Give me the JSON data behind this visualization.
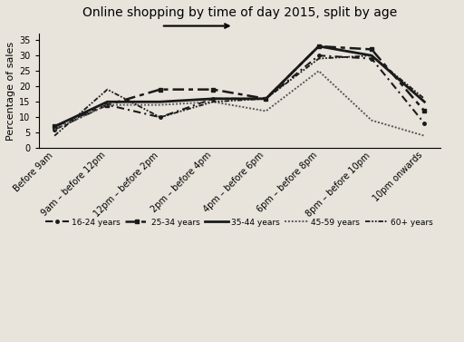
{
  "title": "Online shopping by time of day 2015, split by age",
  "title_underline_word": "time of day",
  "ylabel": "Percentage of sales",
  "ylim": [
    0,
    37
  ],
  "yticks": [
    0,
    5,
    10,
    15,
    20,
    25,
    30,
    35
  ],
  "x_labels": [
    "Before 9am",
    "9am – before 12pm",
    "12pm – before 2pm",
    "2pm – before 4pm",
    "4pm – before 6pm",
    "6pm – before 8pm",
    "8pm – before 10pm",
    "10pm onwards"
  ],
  "series": {
    "16-24 years": [
      6,
      14,
      10,
      16,
      16,
      30,
      29,
      8
    ],
    "25-34 years": [
      7,
      14,
      19,
      19,
      16,
      33,
      32,
      12
    ],
    "35-44 years": [
      7,
      15,
      15,
      16,
      16,
      33,
      30,
      15
    ],
    "45-59 years": [
      6,
      14,
      14,
      15,
      12,
      25,
      9,
      4
    ],
    "60+ years": [
      4,
      19,
      10,
      15,
      16,
      29,
      30,
      16
    ]
  },
  "background_color": "#e8e4dc",
  "plot_bg_color": "#e8e4dc",
  "title_fontsize": 10,
  "axis_label_fontsize": 8,
  "tick_fontsize": 7
}
